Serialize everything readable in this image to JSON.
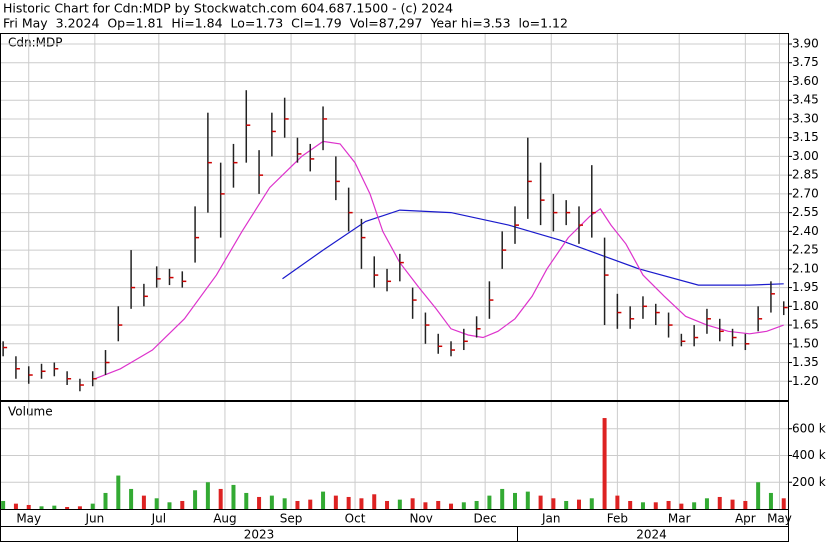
{
  "chart_data": [
    {
      "type": "ohlc",
      "title": "Historic Chart for Cdn:MDP by Stockwatch.com 604.687.1500 - (c) 2024",
      "subtitle": "Fri May  3.2024  Op=1.81  Hi=1.84  Lo=1.73  Cl=1.79  Vol=87,297  Year hi=3.53  lo=1.12",
      "label": "Cdn:MDP",
      "x": [
        0,
        6,
        12,
        18,
        24,
        30,
        36,
        42,
        48,
        54,
        60,
        66,
        72,
        78,
        84,
        90,
        96,
        102,
        108,
        114,
        120,
        126,
        132,
        138,
        144,
        150,
        156,
        162,
        168,
        174,
        180,
        186,
        192,
        198,
        204,
        210,
        216,
        222,
        228,
        234,
        240,
        246,
        252,
        258,
        264,
        270,
        276,
        282,
        288,
        294,
        300,
        306,
        312,
        318,
        324,
        330,
        336,
        342,
        348,
        354,
        360,
        366
      ],
      "high": [
        1.52,
        1.4,
        1.32,
        1.34,
        1.35,
        1.28,
        1.22,
        1.28,
        1.45,
        1.8,
        2.25,
        1.98,
        2.12,
        2.1,
        2.08,
        2.6,
        3.35,
        2.95,
        3.1,
        3.53,
        3.05,
        3.35,
        3.47,
        3.15,
        3.1,
        3.4,
        3.0,
        2.75,
        2.5,
        2.2,
        2.1,
        2.22,
        1.95,
        1.75,
        1.58,
        1.52,
        1.62,
        1.72,
        2.0,
        2.4,
        2.6,
        3.15,
        2.95,
        2.7,
        2.65,
        2.6,
        2.93,
        2.35,
        1.9,
        1.8,
        1.88,
        1.82,
        1.75,
        1.58,
        1.65,
        1.78,
        1.7,
        1.62,
        1.58,
        1.8,
        2.0,
        1.84
      ],
      "low": [
        1.4,
        1.22,
        1.18,
        1.22,
        1.24,
        1.17,
        1.12,
        1.16,
        1.25,
        1.52,
        1.78,
        1.8,
        1.95,
        1.97,
        1.95,
        2.15,
        2.55,
        2.35,
        2.75,
        2.95,
        2.7,
        3.0,
        3.15,
        2.95,
        2.88,
        3.05,
        2.65,
        2.4,
        2.1,
        1.95,
        1.92,
        2.0,
        1.7,
        1.5,
        1.42,
        1.4,
        1.45,
        1.55,
        1.7,
        2.1,
        2.3,
        2.5,
        2.45,
        2.4,
        2.45,
        2.3,
        2.35,
        1.65,
        1.62,
        1.62,
        1.7,
        1.65,
        1.55,
        1.48,
        1.48,
        1.58,
        1.52,
        1.48,
        1.45,
        1.6,
        1.75,
        1.73
      ],
      "close": [
        1.47,
        1.3,
        1.25,
        1.28,
        1.3,
        1.22,
        1.17,
        1.22,
        1.35,
        1.65,
        1.95,
        1.88,
        2.02,
        2.03,
        2.0,
        2.35,
        2.95,
        2.7,
        2.95,
        3.25,
        2.85,
        3.2,
        3.3,
        3.02,
        2.98,
        3.3,
        2.8,
        2.55,
        2.35,
        2.05,
        2.0,
        2.15,
        1.85,
        1.65,
        1.48,
        1.45,
        1.52,
        1.62,
        1.85,
        2.25,
        2.45,
        2.8,
        2.65,
        2.55,
        2.55,
        2.45,
        2.55,
        2.05,
        1.75,
        1.7,
        1.8,
        1.75,
        1.65,
        1.52,
        1.55,
        1.7,
        1.6,
        1.55,
        1.5,
        1.7,
        1.9,
        1.79
      ],
      "bar_color": "#222222",
      "close_color": "#cc0000",
      "lines": [
        {
          "color": "#1a1acc",
          "x": [
            131,
            150,
            170,
            186,
            210,
            237,
            261,
            298,
            326,
            350,
            366
          ],
          "values": [
            2.02,
            2.25,
            2.48,
            2.57,
            2.55,
            2.45,
            2.33,
            2.1,
            1.97,
            1.97,
            1.98
          ]
        },
        {
          "color": "#dd33cc",
          "x": [
            43,
            55,
            70,
            85,
            100,
            112,
            125,
            140,
            150,
            158,
            165,
            172,
            178,
            186,
            195,
            203,
            210,
            218,
            225,
            232,
            240,
            248,
            255,
            265,
            275,
            280,
            285,
            292,
            300,
            310,
            320,
            330,
            340,
            350,
            358,
            366
          ],
          "values": [
            1.22,
            1.3,
            1.45,
            1.7,
            2.05,
            2.4,
            2.75,
            3.0,
            3.12,
            3.1,
            2.95,
            2.7,
            2.4,
            2.15,
            1.95,
            1.78,
            1.62,
            1.57,
            1.55,
            1.6,
            1.7,
            1.88,
            2.1,
            2.35,
            2.52,
            2.58,
            2.45,
            2.3,
            2.05,
            1.88,
            1.72,
            1.65,
            1.6,
            1.58,
            1.6,
            1.65
          ]
        }
      ],
      "xlim": [
        -1,
        368
      ],
      "ylim": [
        1.05,
        3.98
      ],
      "yticks": [
        {
          "value": 1.2,
          "label": "1.20"
        },
        {
          "value": 1.35,
          "label": "1.35"
        },
        {
          "value": 1.5,
          "label": "1.50"
        },
        {
          "value": 1.65,
          "label": "1.65"
        },
        {
          "value": 1.8,
          "label": "1.80"
        },
        {
          "value": 1.95,
          "label": "1.95"
        },
        {
          "value": 2.1,
          "label": "2.10"
        },
        {
          "value": 2.25,
          "label": "2.25"
        },
        {
          "value": 2.4,
          "label": "2.40"
        },
        {
          "value": 2.55,
          "label": "2.55"
        },
        {
          "value": 2.7,
          "label": "2.70"
        },
        {
          "value": 2.85,
          "label": "2.85"
        },
        {
          "value": 3.0,
          "label": "3.00"
        },
        {
          "value": 3.15,
          "label": "3.15"
        },
        {
          "value": 3.3,
          "label": "3.30"
        },
        {
          "value": 3.45,
          "label": "3.45"
        },
        {
          "value": 3.6,
          "label": "3.60"
        },
        {
          "value": 3.75,
          "label": "3.75"
        },
        {
          "value": 3.9,
          "label": "3.90"
        }
      ],
      "grid": true
    },
    {
      "type": "volume",
      "label": "Volume",
      "values": [
        60,
        40,
        30,
        20,
        25,
        15,
        20,
        40,
        120,
        250,
        150,
        100,
        80,
        50,
        60,
        140,
        200,
        150,
        180,
        120,
        90,
        100,
        80,
        60,
        70,
        130,
        100,
        90,
        80,
        110,
        60,
        70,
        80,
        50,
        60,
        40,
        50,
        60,
        100,
        150,
        120,
        130,
        100,
        80,
        60,
        70,
        80,
        680,
        100,
        60,
        50,
        50,
        60,
        40,
        50,
        80,
        90,
        70,
        60,
        200,
        120,
        80
      ],
      "up_color": "#33aa33",
      "down_color": "#dd2222",
      "ylim": [
        0,
        800
      ],
      "yticks": [
        {
          "value": 200,
          "label": "200 k"
        },
        {
          "value": 400,
          "label": "400 k"
        },
        {
          "value": 600,
          "label": "600 k"
        }
      ],
      "xticks": [
        {
          "value": 12,
          "label": "May"
        },
        {
          "value": 43,
          "label": "Jun"
        },
        {
          "value": 73,
          "label": "Jul"
        },
        {
          "value": 104,
          "label": "Aug"
        },
        {
          "value": 135,
          "label": "Sep"
        },
        {
          "value": 165,
          "label": "Oct"
        },
        {
          "value": 196,
          "label": "Nov"
        },
        {
          "value": 226,
          "label": "Dec"
        },
        {
          "value": 257,
          "label": "Jan"
        },
        {
          "value": 288,
          "label": "Feb"
        },
        {
          "value": 317,
          "label": "Mar"
        },
        {
          "value": 348,
          "label": "Apr"
        },
        {
          "value": 364,
          "label": "May"
        }
      ],
      "year_labels": [
        {
          "value": 120,
          "label": "2023"
        },
        {
          "value": 304,
          "label": "2024"
        }
      ],
      "grid": true
    }
  ]
}
